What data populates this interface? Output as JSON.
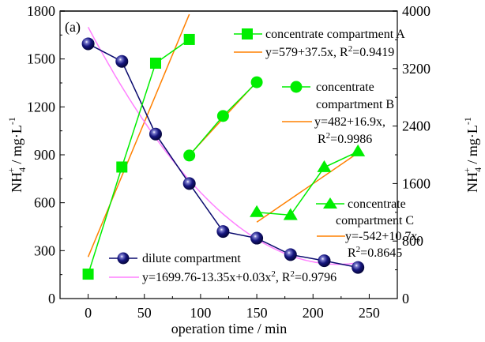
{
  "chart_data": {
    "type": "line",
    "panel_label": "(a)",
    "xlabel": "operation time / min",
    "ylabel_left": "NH4+ / mg·L-1",
    "ylabel_right": "NH4+ / mg·L-1",
    "xlim": [
      -25,
      275
    ],
    "ylim_left": [
      0,
      1800
    ],
    "ylim_right": [
      0,
      4000
    ],
    "x_ticks": [
      0,
      50,
      100,
      150,
      200,
      250
    ],
    "y_ticks_left": [
      0,
      300,
      600,
      900,
      1200,
      1500,
      1800
    ],
    "y_ticks_right": [
      0,
      800,
      1600,
      2400,
      3200,
      4000
    ],
    "grid": false,
    "series": [
      {
        "name": "dilute compartment",
        "axis": "left",
        "marker": "sphere",
        "color": "#0a0a6e",
        "x": [
          0,
          30,
          60,
          90,
          120,
          150,
          180,
          210,
          240
        ],
        "y": [
          1595,
          1485,
          1030,
          720,
          420,
          378,
          275,
          237,
          195
        ]
      },
      {
        "name": "concentrate compartment A",
        "axis": "right",
        "marker": "square",
        "color": "#00ee00",
        "x": [
          0,
          30,
          60,
          90
        ],
        "y": [
          340,
          1830,
          3275,
          3605
        ]
      },
      {
        "name": "concentrate compartment B",
        "axis": "right",
        "marker": "circle",
        "color": "#00ee00",
        "x": [
          90,
          120,
          150
        ],
        "y": [
          1990,
          2540,
          3010
        ]
      },
      {
        "name": "concentrate compartment C",
        "axis": "right",
        "marker": "triangle",
        "color": "#00ee00",
        "x": [
          150,
          180,
          210,
          240
        ],
        "y": [
          1200,
          1160,
          1825,
          2045
        ]
      }
    ],
    "fits": [
      {
        "name": "fit A",
        "label": "y=579+37.5x, R2=0.9419",
        "axis": "right",
        "color": "#ff8000",
        "kind": "linear",
        "x_range": [
          0,
          90
        ],
        "y_range": [
          579,
          3955
        ]
      },
      {
        "name": "fit B",
        "label_line1": "y=482+16.9x,",
        "label_line2": "R2=0.9986",
        "axis": "right",
        "color": "#ff8000",
        "kind": "linear",
        "x_range": [
          90,
          150
        ],
        "y_range": [
          1995,
          3017
        ]
      },
      {
        "name": "fit C",
        "label_line1": "y=-542+10.7x,",
        "label_line2": "R2=0.8645",
        "axis": "right",
        "color": "#ff8000",
        "kind": "linear",
        "x_range": [
          150,
          240
        ],
        "y_range": [
          1063,
          2026
        ]
      },
      {
        "name": "fit dilute",
        "label": "y=1699.76-13.35x+0.03x2, R2=0.9796",
        "axis": "left",
        "color": "#ff80ff",
        "kind": "quadratic",
        "coefficients": [
          1699.76,
          -13.35,
          0.03
        ],
        "x_range": [
          0,
          240
        ]
      }
    ],
    "legend": {
      "A_label": "concentrate compartment A",
      "A_fit": "y=579+37.5x, R",
      "B_label1": "concentrate",
      "B_label2": "compartment B",
      "B_fit1": "y=482+16.9x,",
      "B_fit2": "R",
      "B_fit2b": "=0.9986",
      "C_label1": "concentrate",
      "C_label2": "compartment C",
      "C_fit1": "y=-542+10.7x,",
      "C_fit2": "R",
      "C_fit2b": "=0.8645",
      "D_label": "dilute compartment",
      "D_fit": "y=1699.76-13.35x+0.03x",
      "D_fit_tail": ", R",
      "D_fit_end": "=0.9796",
      "A_fit_end": "=0.9419",
      "sup2": "2"
    },
    "axis_text": {
      "nh": "NH",
      "sub4": "4",
      "supplus": "+",
      "unit": " / mg·L",
      "supneg1": "-1"
    }
  }
}
